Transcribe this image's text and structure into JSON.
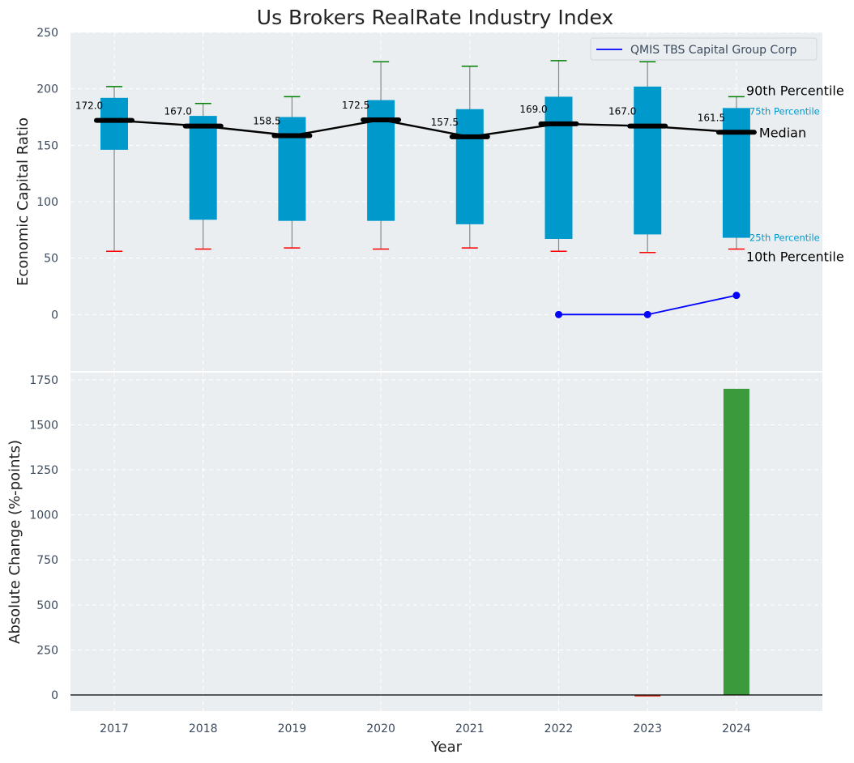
{
  "chart_data": [
    {
      "type": "box",
      "title": "Us Brokers RealRate Industry Index",
      "ylabel": "Economic Capital Ratio",
      "ylim": [
        -50,
        250
      ],
      "yticks": [
        0,
        50,
        100,
        150,
        200,
        250
      ],
      "grid": true,
      "categories": [
        "2017",
        "2018",
        "2019",
        "2020",
        "2021",
        "2022",
        "2023",
        "2024"
      ],
      "p10": [
        56,
        58,
        59,
        58,
        59,
        56,
        55,
        58
      ],
      "p25": [
        146,
        84,
        83,
        83,
        80,
        67,
        71,
        68
      ],
      "median": [
        172.0,
        167.0,
        158.5,
        172.5,
        157.5,
        169.0,
        167.0,
        161.5
      ],
      "p75": [
        192,
        176,
        175,
        190,
        182,
        193,
        202,
        183
      ],
      "p90": [
        202,
        187,
        193,
        224,
        220,
        225,
        224,
        193
      ],
      "median_labels": [
        "172.0",
        "167.0",
        "158.5",
        "172.5",
        "157.5",
        "169.0",
        "167.0",
        "161.5"
      ],
      "company_series": {
        "name": "QMIS TBS Capital Group Corp",
        "x": [
          "2022",
          "2023",
          "2024"
        ],
        "values": [
          0,
          0,
          17
        ]
      },
      "legend": {
        "label": "QMIS TBS Capital Group Corp",
        "position": "top-right"
      },
      "annotations": {
        "p90": "90th Percentile",
        "p75": "75th Percentile",
        "median": "Median",
        "p25": "25th Percentile",
        "p10": "10th Percentile"
      },
      "colors": {
        "box": "#0099cc",
        "median": "#000000",
        "p90_cap": "#008000",
        "p10_cap": "#ff0000",
        "company": "#0000ff",
        "background": "#eaeef0"
      }
    },
    {
      "type": "bar",
      "xlabel": "Year",
      "ylabel": "Absolute Change (%-points)",
      "ylim": [
        -90,
        1790
      ],
      "yticks": [
        0,
        250,
        500,
        750,
        1000,
        1250,
        1500,
        1750
      ],
      "grid": true,
      "categories": [
        "2017",
        "2018",
        "2019",
        "2020",
        "2021",
        "2022",
        "2023",
        "2024"
      ],
      "values": [
        0,
        0,
        0,
        0,
        0,
        0,
        -8,
        1700
      ],
      "colors": {
        "positive": "#3a9a3c",
        "negative": "#e03a2e"
      }
    }
  ]
}
